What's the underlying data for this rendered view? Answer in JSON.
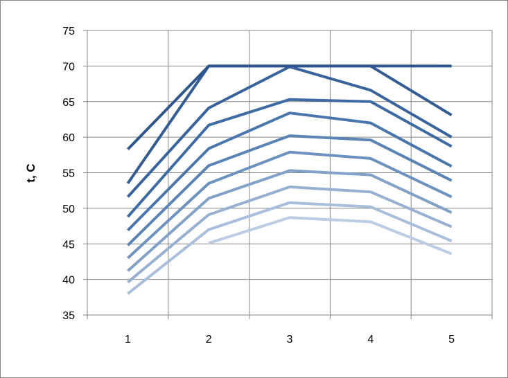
{
  "chart_data": {
    "type": "line",
    "title": "",
    "xlabel": "",
    "ylabel": "t, C",
    "x": [
      1,
      2,
      3,
      4,
      5
    ],
    "ylim": [
      35,
      75
    ],
    "yticks": [
      35,
      40,
      45,
      50,
      55,
      60,
      65,
      70,
      75
    ],
    "grid": true,
    "legend": "none",
    "series": [
      {
        "values": [
          58.3,
          70,
          70,
          70,
          70
        ],
        "color": "#2F568C"
      },
      {
        "values": [
          53.5,
          70,
          70,
          70,
          63.1
        ],
        "color": "#335C94"
      },
      {
        "values": [
          51.6,
          64.1,
          69.9,
          66.6,
          60.0
        ],
        "color": "#38639C"
      },
      {
        "values": [
          48.8,
          61.7,
          65.3,
          65.0,
          58.7
        ],
        "color": "#3E6BA4"
      },
      {
        "values": [
          46.9,
          58.4,
          63.4,
          62.0,
          55.9
        ],
        "color": "#4A76AE"
      },
      {
        "values": [
          44.8,
          56.0,
          60.2,
          59.6,
          53.9
        ],
        "color": "#5A84B6"
      },
      {
        "values": [
          43.0,
          53.5,
          57.9,
          57.0,
          51.6
        ],
        "color": "#6E92BF"
      },
      {
        "values": [
          41.2,
          51.4,
          55.3,
          54.7,
          49.4
        ],
        "color": "#82A1C8"
      },
      {
        "values": [
          39.6,
          49.1,
          53.0,
          52.3,
          47.4
        ],
        "color": "#97B0D1"
      },
      {
        "values": [
          38.0,
          47.0,
          50.8,
          50.2,
          45.4
        ],
        "color": "#A9BEDA"
      },
      {
        "values": [
          null,
          45.1,
          48.7,
          48.1,
          43.6
        ],
        "color": "#BCCCE3"
      }
    ]
  }
}
